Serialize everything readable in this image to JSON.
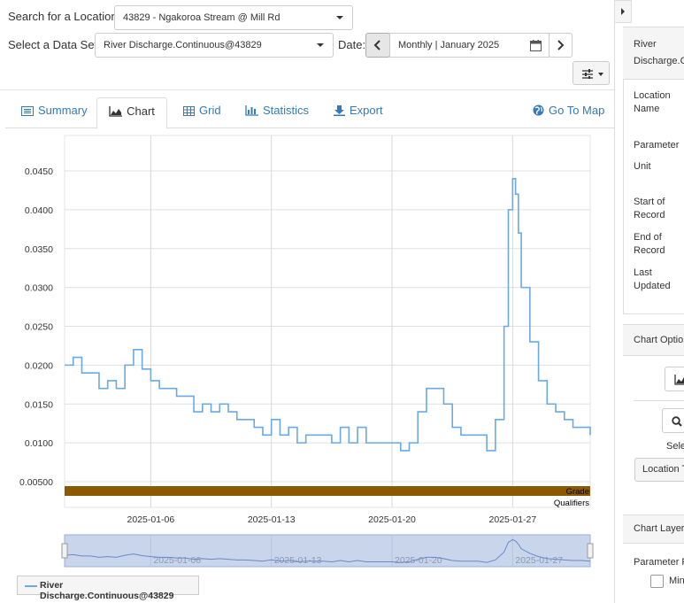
{
  "search": {
    "label": "Search for a Location:",
    "value": "43829 - Ngakoroa Stream @ Mill Rd"
  },
  "dataset": {
    "label": "Select a Data Set:",
    "value": "River Discharge.Continuous@43829"
  },
  "date": {
    "label": "Date:",
    "value": "Monthly | January 2025"
  },
  "tabs": [
    {
      "label": "Summary",
      "icon": "list-icon"
    },
    {
      "label": "Chart",
      "icon": "area-chart-icon"
    },
    {
      "label": "Grid",
      "icon": "table-icon"
    },
    {
      "label": "Statistics",
      "icon": "bar-chart-icon"
    },
    {
      "label": "Export",
      "icon": "download-icon"
    }
  ],
  "goto_map": "Go To Map",
  "chart_data": {
    "type": "line",
    "series": [
      {
        "name": "River Discharge.Continuous@43829",
        "color": "#6aa9e3",
        "x": [
          "2025-01-01T00:00",
          "2025-01-01T12:00",
          "2025-01-02T00:00",
          "2025-01-02T12:00",
          "2025-01-03T00:00",
          "2025-01-03T12:00",
          "2025-01-04T00:00",
          "2025-01-04T12:00",
          "2025-01-05T00:00",
          "2025-01-05T12:00",
          "2025-01-06T00:00",
          "2025-01-06T12:00",
          "2025-01-07T00:00",
          "2025-01-07T12:00",
          "2025-01-08T00:00",
          "2025-01-08T12:00",
          "2025-01-09T00:00",
          "2025-01-09T12:00",
          "2025-01-10T00:00",
          "2025-01-10T12:00",
          "2025-01-11T00:00",
          "2025-01-11T12:00",
          "2025-01-12T00:00",
          "2025-01-12T12:00",
          "2025-01-13T00:00",
          "2025-01-13T12:00",
          "2025-01-14T00:00",
          "2025-01-14T12:00",
          "2025-01-15T00:00",
          "2025-01-15T12:00",
          "2025-01-16T00:00",
          "2025-01-16T12:00",
          "2025-01-17T00:00",
          "2025-01-17T12:00",
          "2025-01-18T00:00",
          "2025-01-18T12:00",
          "2025-01-19T00:00",
          "2025-01-19T12:00",
          "2025-01-20T00:00",
          "2025-01-20T12:00",
          "2025-01-21T00:00",
          "2025-01-21T12:00",
          "2025-01-22T00:00",
          "2025-01-22T12:00",
          "2025-01-23T00:00",
          "2025-01-23T12:00",
          "2025-01-24T00:00",
          "2025-01-24T12:00",
          "2025-01-25T00:00",
          "2025-01-25T12:00",
          "2025-01-26T00:00",
          "2025-01-26T12:00",
          "2025-01-26T18:00",
          "2025-01-27T00:00",
          "2025-01-27T04:00",
          "2025-01-27T08:00",
          "2025-01-27T12:00",
          "2025-01-28T00:00",
          "2025-01-28T12:00",
          "2025-01-29T00:00",
          "2025-01-29T12:00",
          "2025-01-30T00:00",
          "2025-01-30T12:00",
          "2025-01-31T00:00",
          "2025-01-31T12:00"
        ],
        "values": [
          0.02,
          0.021,
          0.019,
          0.019,
          0.017,
          0.018,
          0.017,
          0.02,
          0.022,
          0.0195,
          0.018,
          0.017,
          0.017,
          0.016,
          0.016,
          0.014,
          0.015,
          0.014,
          0.015,
          0.014,
          0.013,
          0.013,
          0.012,
          0.011,
          0.013,
          0.011,
          0.012,
          0.01,
          0.011,
          0.011,
          0.011,
          0.01,
          0.012,
          0.01,
          0.012,
          0.01,
          0.01,
          0.01,
          0.01,
          0.009,
          0.01,
          0.014,
          0.017,
          0.017,
          0.015,
          0.012,
          0.011,
          0.011,
          0.011,
          0.009,
          0.013,
          0.025,
          0.04,
          0.044,
          0.042,
          0.037,
          0.03,
          0.023,
          0.018,
          0.015,
          0.014,
          0.013,
          0.012,
          0.012,
          0.011
        ]
      }
    ],
    "y_ticks": [
      "0.00500",
      "0.0100",
      "0.0150",
      "0.0200",
      "0.0250",
      "0.0300",
      "0.0350",
      "0.0400",
      "0.0450"
    ],
    "ylim": [
      0.0045,
      0.0495
    ],
    "x_ticks": [
      "2025-01-06",
      "2025-01-13",
      "2025-01-20",
      "2025-01-27"
    ],
    "xlim": [
      "2025-01-01T00:00",
      "2025-01-31T12:00"
    ],
    "grade_label": "Grade",
    "qualifiers_label": "Qualifiers",
    "grade_color": "#8b5a00",
    "grid": true,
    "legend": "bottom-left"
  },
  "legend_label": "River Discharge.Continuous@43829",
  "right_panel": {
    "title": "River Discharge.Co",
    "fields": [
      "Location Name",
      "Parameter",
      "Unit",
      "Start of Record",
      "End of Record",
      "Last Updated"
    ],
    "chart_options_title": "Chart Option",
    "select_label": "Selec",
    "location_btn": "Location T",
    "chart_layers_title": "Chart Layers",
    "param_label": "Parameter R",
    "min_label": "Min"
  }
}
